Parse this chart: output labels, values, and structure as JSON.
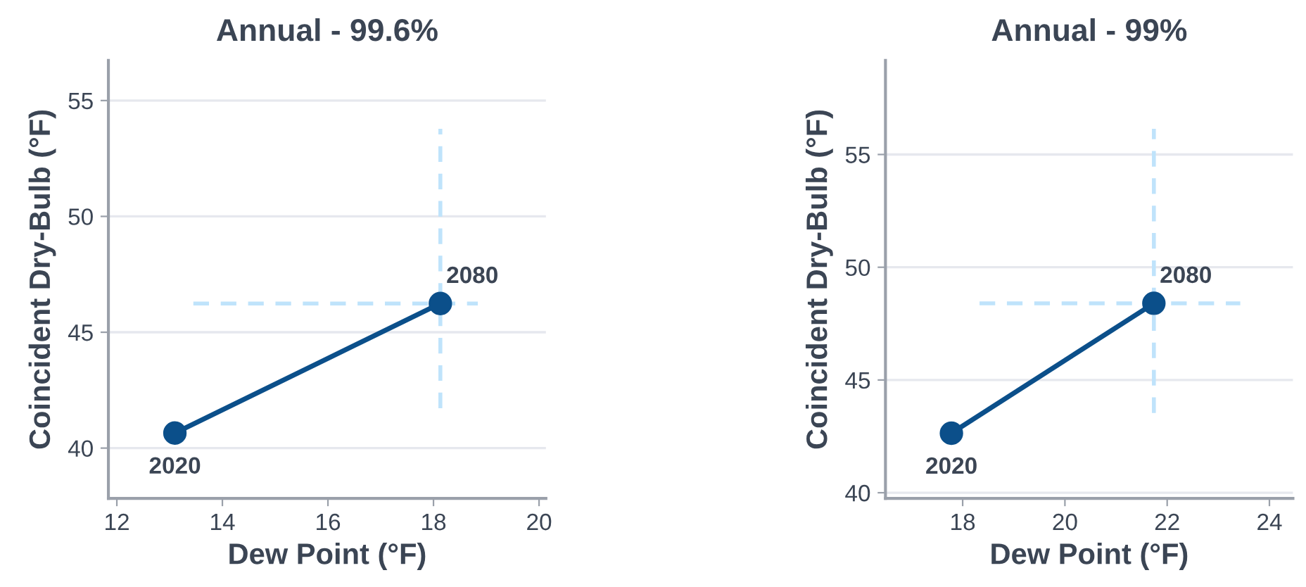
{
  "chart_data": [
    {
      "type": "line",
      "title": "Annual - 99.6%",
      "xlabel": "Dew Point (°F)",
      "ylabel": "Coincident Dry-Bulb (°F)",
      "x": [
        13.1,
        18.13
      ],
      "series": [
        {
          "color": "#0b4f8a",
          "values": [
            40.65,
            46.24
          ],
          "errors": [
            null,
            [
              41.72,
              53.78
            ]
          ],
          "xerrors": [
            null,
            [
              13.45,
              18.84
            ]
          ]
        }
      ],
      "annotations": [
        {
          "text": "2020",
          "x": 13.1,
          "y": 40.65
        },
        {
          "text": "2080",
          "x": 18.13,
          "y": 46.24
        }
      ],
      "xlim": [
        11.84,
        20.13
      ],
      "ylim": [
        37.83,
        56.73
      ],
      "xticks": [
        12,
        14,
        16,
        18,
        20
      ],
      "yticks": [
        40,
        45,
        50,
        55
      ],
      "grid": "y",
      "marker": "circle",
      "line_style": "solid"
    },
    {
      "type": "line",
      "title": "Annual - 99%",
      "xlabel": "Dew Point (°F)",
      "ylabel": "Coincident Dry-Bulb (°F)",
      "x": [
        17.78,
        21.74
      ],
      "series": [
        {
          "color": "#0b4f8a",
          "values": [
            42.64,
            48.4
          ],
          "errors": [
            null,
            [
              43.54,
              56.14
            ]
          ],
          "xerrors": [
            null,
            [
              18.33,
              23.43
            ]
          ]
        }
      ],
      "annotations": [
        {
          "text": "2020",
          "x": 17.78,
          "y": 42.64
        },
        {
          "text": "2080",
          "x": 21.74,
          "y": 48.4
        }
      ],
      "xlim": [
        16.49,
        24.46
      ],
      "ylim": [
        39.75,
        59.17
      ],
      "xticks": [
        18,
        20,
        22,
        24
      ],
      "yticks": [
        40,
        45,
        50,
        55
      ],
      "grid": "y",
      "marker": "circle",
      "line_style": "solid"
    }
  ]
}
